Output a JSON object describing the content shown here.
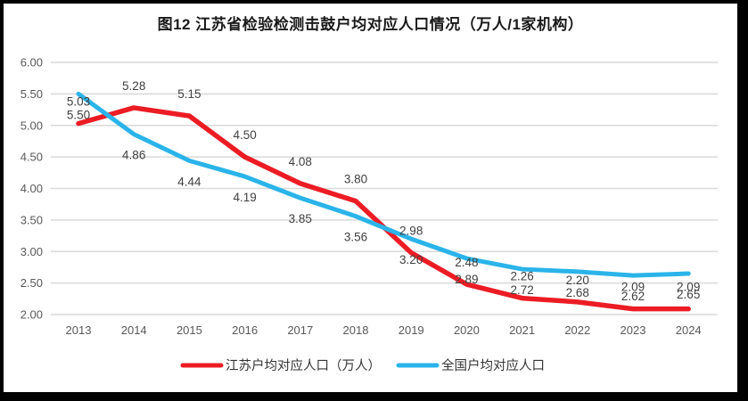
{
  "title": "图12  江苏省检验检测击鼓户均对应人口情况（万人/1家机构）",
  "chart_data": {
    "type": "line",
    "categories": [
      "2013",
      "2014",
      "2015",
      "2016",
      "2017",
      "2018",
      "2019",
      "2020",
      "2021",
      "2022",
      "2023",
      "2024"
    ],
    "series": [
      {
        "name": "江苏户均对应人口（万人）",
        "color": "#ec1c24",
        "label_position": "above",
        "values": [
          5.03,
          5.28,
          5.15,
          4.5,
          4.08,
          3.8,
          2.98,
          2.48,
          2.26,
          2.2,
          2.09,
          2.09
        ]
      },
      {
        "name": "全国户均对应人口",
        "color": "#2ab4e9",
        "label_position": "below",
        "values": [
          5.5,
          4.86,
          4.44,
          4.19,
          3.85,
          3.56,
          3.2,
          2.89,
          2.72,
          2.68,
          2.62,
          2.65
        ]
      }
    ],
    "ylim": [
      2.0,
      6.0
    ],
    "ytick_step": 0.5,
    "ytick_labels": [
      "6.00",
      "5.50",
      "5.00",
      "4.50",
      "4.00",
      "3.50",
      "3.00",
      "2.50",
      "2.00"
    ],
    "grid": true,
    "data_labels": true,
    "legend_position": "bottom"
  },
  "colors": {
    "grid": "#d9d9d9",
    "axis_text": "#595959",
    "data_label_text": "#404040",
    "legend_text": "#333333",
    "frame_border": "#000000"
  }
}
